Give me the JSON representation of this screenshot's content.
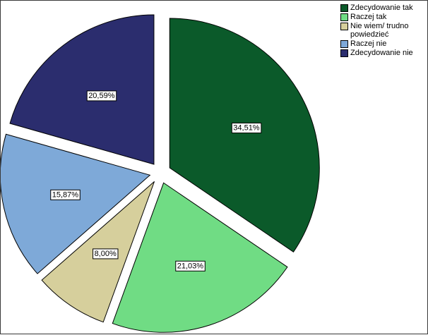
{
  "chart_data": {
    "type": "pie",
    "start_angle_deg": 0,
    "direction": "clockwise",
    "exploded": true,
    "slices": [
      {
        "label": "Zdecydowanie tak",
        "value": 34.51,
        "display": "34,51%",
        "color": "#0b5a2a"
      },
      {
        "label": "Raczej tak",
        "value": 21.03,
        "display": "21,03%",
        "color": "#70dc84"
      },
      {
        "label": "Nie wiem/ trudno powiedzieć",
        "value": 8.0,
        "display": "8,00%",
        "color": "#d6cf9c"
      },
      {
        "label": "Raczej nie",
        "value": 15.87,
        "display": "15,87%",
        "color": "#7ea9d8"
      },
      {
        "label": "Zdecydowanie nie",
        "value": 20.59,
        "display": "20,59%",
        "color": "#2b2d6e"
      }
    ],
    "legend": {
      "position": "top-right"
    }
  }
}
